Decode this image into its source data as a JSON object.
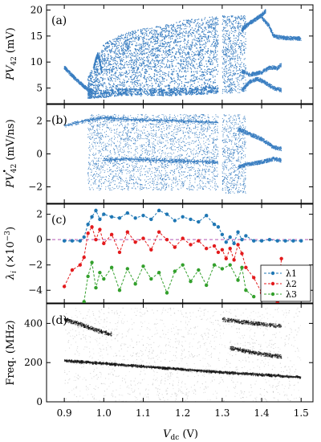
{
  "chart_data": [
    {
      "type": "scatter",
      "panel_label": "(a)",
      "ylabel": "PV42 (mV)",
      "ylim": [
        2,
        21
      ],
      "yticks": [
        5,
        10,
        15,
        20
      ],
      "xlim": [
        0.855,
        1.53
      ],
      "color": "#3a7ec1",
      "branches": [
        {
          "name": "low-branch",
          "points": [
            [
              0.9,
              9.0
            ],
            [
              0.92,
              7.4
            ],
            [
              0.94,
              6.0
            ],
            [
              0.955,
              5.0
            ],
            [
              0.97,
              4.4
            ]
          ]
        },
        {
          "name": "pre-chaos-band",
          "points": [
            [
              0.975,
              9.0
            ],
            [
              0.98,
              10.5
            ],
            [
              0.985,
              11.5
            ],
            [
              0.99,
              10.0
            ],
            [
              0.995,
              8.0
            ]
          ]
        },
        {
          "name": "chaotic-envelope",
          "x": [
            0.96,
            1.0,
            1.05,
            1.1,
            1.15,
            1.2,
            1.25,
            1.29
          ],
          "ymin": [
            3.0,
            3.2,
            3.5,
            3.5,
            3.5,
            3.6,
            3.8,
            4.0
          ],
          "ymax": [
            7.0,
            13.5,
            15.5,
            16.5,
            17.0,
            18.0,
            18.5,
            18.8
          ]
        },
        {
          "name": "upper-periodic-a",
          "points": [
            [
              1.35,
              16.2
            ],
            [
              1.37,
              17.5
            ],
            [
              1.38,
              18.0
            ],
            [
              1.4,
              19.0
            ],
            [
              1.41,
              19.8
            ]
          ]
        },
        {
          "name": "upper-periodic-b",
          "points": [
            [
              1.4,
              18.6
            ],
            [
              1.42,
              16.8
            ],
            [
              1.43,
              15.0
            ],
            [
              1.44,
              14.8
            ],
            [
              1.46,
              14.6
            ],
            [
              1.5,
              14.5
            ]
          ]
        },
        {
          "name": "mid-periodic",
          "points": [
            [
              1.35,
              8.2
            ],
            [
              1.37,
              7.6
            ],
            [
              1.4,
              8.0
            ],
            [
              1.42,
              9.0
            ],
            [
              1.44,
              8.8
            ],
            [
              1.45,
              9.5
            ]
          ]
        },
        {
          "name": "lower-periodic",
          "points": [
            [
              1.35,
              4.6
            ],
            [
              1.37,
              6.2
            ],
            [
              1.39,
              6.8
            ],
            [
              1.41,
              6.0
            ],
            [
              1.43,
              5.0
            ],
            [
              1.45,
              4.6
            ]
          ]
        }
      ]
    },
    {
      "type": "scatter",
      "panel_label": "(b)",
      "ylabel": "PV•42 (mV/ns)",
      "ylim": [
        -3.0,
        3.0
      ],
      "yticks": [
        -2,
        0,
        2
      ],
      "xlim": [
        0.855,
        1.53
      ],
      "color": "#3a7ec1",
      "branches": [
        {
          "name": "upper-band",
          "points": [
            [
              0.9,
              1.7
            ],
            [
              0.95,
              2.0
            ],
            [
              1.0,
              2.2
            ],
            [
              1.05,
              2.1
            ],
            [
              1.1,
              2.05
            ],
            [
              1.2,
              2.0
            ],
            [
              1.29,
              1.9
            ]
          ]
        },
        {
          "name": "lower-band",
          "points": [
            [
              1.0,
              -0.4
            ],
            [
              1.05,
              -0.3
            ],
            [
              1.1,
              -0.35
            ],
            [
              1.2,
              -0.45
            ],
            [
              1.29,
              -0.5
            ]
          ]
        },
        {
          "name": "post-chaos-upper",
          "points": [
            [
              1.34,
              1.5
            ],
            [
              1.37,
              1.2
            ],
            [
              1.4,
              0.9
            ],
            [
              1.43,
              0.4
            ],
            [
              1.45,
              0.3
            ]
          ]
        },
        {
          "name": "post-chaos-lower",
          "points": [
            [
              1.34,
              -0.8
            ],
            [
              1.37,
              -0.6
            ],
            [
              1.4,
              -0.5
            ],
            [
              1.43,
              -0.3
            ],
            [
              1.45,
              -0.4
            ]
          ]
        }
      ]
    },
    {
      "type": "line",
      "panel_label": "(c)",
      "ylabel": "λi (×10−3)",
      "ylim": [
        -5.0,
        2.8
      ],
      "yticks": [
        -4,
        -2,
        0,
        2
      ],
      "xlim": [
        0.855,
        1.53
      ],
      "zero_line": true,
      "legend_position": "lower-right",
      "series": [
        {
          "name": "λ1",
          "color": "#1f77b4",
          "x": [
            0.9,
            0.92,
            0.94,
            0.95,
            0.96,
            0.97,
            0.98,
            0.99,
            1.0,
            1.02,
            1.04,
            1.06,
            1.08,
            1.1,
            1.12,
            1.14,
            1.16,
            1.18,
            1.2,
            1.22,
            1.24,
            1.26,
            1.28,
            1.29,
            1.3,
            1.31,
            1.32,
            1.33,
            1.34,
            1.35,
            1.36,
            1.38,
            1.4,
            1.42,
            1.44,
            1.46,
            1.48,
            1.5
          ],
          "values": [
            -0.1,
            -0.1,
            -0.1,
            0.2,
            1.2,
            1.8,
            2.3,
            1.6,
            2.0,
            1.8,
            1.7,
            2.1,
            1.7,
            1.9,
            1.6,
            2.3,
            2.0,
            1.5,
            1.8,
            1.6,
            1.4,
            1.9,
            1.2,
            1.0,
            0.4,
            -0.2,
            0.2,
            -0.3,
            0.6,
            0.0,
            0.3,
            -0.1,
            -0.1,
            0.0,
            -0.1,
            -0.1,
            -0.1,
            -0.1
          ]
        },
        {
          "name": "λ2",
          "color": "#e31a1c",
          "x": [
            0.9,
            0.92,
            0.94,
            0.95,
            0.96,
            0.97,
            0.98,
            0.99,
            1.0,
            1.02,
            1.04,
            1.06,
            1.08,
            1.1,
            1.12,
            1.14,
            1.16,
            1.18,
            1.2,
            1.22,
            1.24,
            1.26,
            1.28,
            1.29,
            1.3,
            1.31,
            1.32,
            1.33,
            1.34,
            1.35,
            1.36,
            1.38,
            1.4,
            1.42,
            1.44,
            1.45
          ],
          "values": [
            -3.7,
            -2.4,
            -2.0,
            -1.4,
            0.5,
            1.0,
            0.0,
            0.8,
            -0.3,
            0.4,
            -1.0,
            0.6,
            -0.2,
            0.1,
            -0.8,
            0.6,
            0.0,
            -0.6,
            0.1,
            -0.4,
            -0.1,
            -0.7,
            -0.5,
            -1.0,
            -0.8,
            -1.5,
            -0.7,
            -1.6,
            -0.4,
            -1.1,
            -2.2,
            -3.0,
            -4.2,
            -3.6,
            -4.9,
            -1.5
          ]
        },
        {
          "name": "λ3",
          "color": "#33a02c",
          "x": [
            0.95,
            0.96,
            0.97,
            0.98,
            0.99,
            1.0,
            1.02,
            1.04,
            1.06,
            1.08,
            1.1,
            1.12,
            1.14,
            1.16,
            1.18,
            1.2,
            1.22,
            1.24,
            1.26,
            1.28,
            1.3,
            1.32,
            1.34,
            1.35,
            1.36,
            1.38
          ],
          "values": [
            -4.9,
            -2.9,
            -1.8,
            -3.8,
            -2.6,
            -3.1,
            -2.2,
            -4.0,
            -2.3,
            -3.5,
            -2.1,
            -3.1,
            -2.6,
            -4.2,
            -2.5,
            -2.0,
            -3.3,
            -2.4,
            -3.6,
            -2.0,
            -2.3,
            -2.0,
            -3.2,
            -2.2,
            -4.0,
            -4.5
          ]
        }
      ]
    },
    {
      "type": "heatmap",
      "panel_label": "(d)",
      "ylabel": "Freq. (MHz)",
      "xlabel": "Vdc (V)",
      "ylim": [
        0,
        500
      ],
      "yticks": [
        0,
        200,
        400
      ],
      "xlim": [
        0.855,
        1.53
      ],
      "xticks": [
        0.9,
        1.0,
        1.1,
        1.2,
        1.3,
        1.4,
        1.5
      ],
      "colormap": "grayscale",
      "ridges": [
        {
          "name": "fundamental",
          "points": [
            [
              0.9,
              210
            ],
            [
              1.0,
              195
            ],
            [
              1.1,
              180
            ],
            [
              1.2,
              165
            ],
            [
              1.3,
              150
            ],
            [
              1.4,
              138
            ],
            [
              1.5,
              125
            ]
          ]
        },
        {
          "name": "harmonic",
          "points": [
            [
              0.9,
              420
            ],
            [
              0.95,
              390
            ],
            [
              0.98,
              365
            ],
            [
              1.02,
              345
            ]
          ]
        },
        {
          "name": "upper-ridge",
          "points": [
            [
              1.3,
              420
            ],
            [
              1.38,
              400
            ],
            [
              1.45,
              385
            ]
          ]
        },
        {
          "name": "mid-ridge",
          "points": [
            [
              1.32,
              275
            ],
            [
              1.38,
              250
            ],
            [
              1.45,
              230
            ]
          ]
        }
      ]
    }
  ]
}
